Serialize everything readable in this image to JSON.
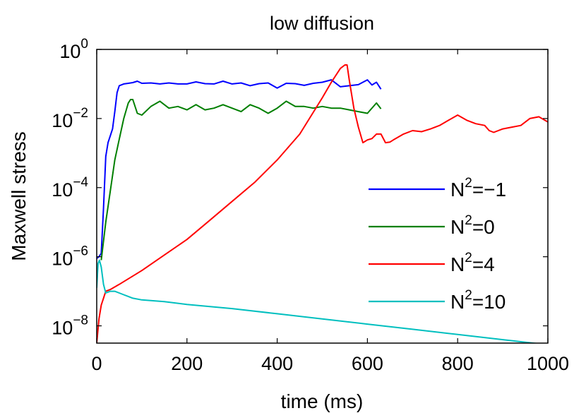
{
  "chart_data": {
    "type": "line",
    "title": "low diffusion",
    "xlabel": "time (ms)",
    "ylabel": "Maxwell stress",
    "yscale": "log",
    "xlim": [
      0,
      1000
    ],
    "ylim_exp": [
      -8.5,
      0
    ],
    "xticks": [
      0,
      200,
      400,
      600,
      800,
      1000
    ],
    "xtick_labels": [
      "0",
      "200",
      "400",
      "600",
      "800",
      "1000"
    ],
    "yticks_exp": [
      -8,
      -6,
      -4,
      -2,
      0
    ],
    "ytick_base": "10",
    "ytick_exponents": [
      "−8",
      "−6",
      "−4",
      "−2",
      "0"
    ],
    "legend_position": "lower-right",
    "series": [
      {
        "name": "N²=−1",
        "legend_prefix": "N",
        "legend_sup": "2",
        "legend_suffix": "=−1",
        "color": "#0000ff",
        "x": [
          0,
          5,
          10,
          15,
          20,
          25,
          30,
          35,
          40,
          45,
          50,
          60,
          70,
          80,
          90,
          100,
          120,
          140,
          160,
          180,
          200,
          220,
          240,
          260,
          280,
          300,
          320,
          340,
          360,
          380,
          400,
          420,
          440,
          460,
          480,
          500,
          520,
          540,
          560,
          580,
          600,
          610,
          620,
          630
        ],
        "y": [
          -6.05,
          -6.0,
          -5.9,
          -4.6,
          -3.1,
          -2.7,
          -2.5,
          -2.3,
          -1.8,
          -1.25,
          -1.05,
          -1.0,
          -0.98,
          -0.96,
          -0.92,
          -0.98,
          -0.97,
          -1.0,
          -0.97,
          -1.0,
          -1.0,
          -0.94,
          -0.99,
          -1.0,
          -0.92,
          -1.0,
          -0.97,
          -1.05,
          -0.99,
          -0.97,
          -1.12,
          -0.98,
          -0.99,
          -1.04,
          -0.98,
          -0.95,
          -0.88,
          -1.08,
          -1.05,
          -1.02,
          -0.88,
          -1.03,
          -0.95,
          -1.15
        ]
      },
      {
        "name": "N²=0",
        "legend_prefix": "N",
        "legend_sup": "2",
        "legend_suffix": "=0",
        "color": "#007f00",
        "x": [
          10,
          20,
          30,
          40,
          50,
          60,
          70,
          75,
          80,
          90,
          100,
          120,
          140,
          160,
          180,
          200,
          220,
          240,
          260,
          280,
          300,
          320,
          340,
          360,
          380,
          400,
          420,
          440,
          460,
          480,
          500,
          520,
          540,
          560,
          580,
          600,
          620,
          630
        ],
        "y": [
          -6.1,
          -5.0,
          -4.1,
          -3.2,
          -2.6,
          -2.0,
          -1.55,
          -1.45,
          -1.45,
          -1.85,
          -1.9,
          -1.65,
          -1.5,
          -1.7,
          -1.65,
          -1.75,
          -1.6,
          -1.75,
          -1.7,
          -1.6,
          -1.7,
          -1.8,
          -1.6,
          -1.7,
          -1.85,
          -1.7,
          -1.5,
          -1.65,
          -1.65,
          -1.7,
          -1.65,
          -1.7,
          -1.7,
          -1.75,
          -1.8,
          -1.85,
          -1.55,
          -1.72
        ]
      },
      {
        "name": "N²=4",
        "legend_prefix": "N",
        "legend_sup": "2",
        "legend_suffix": "=4",
        "color": "#ff0000",
        "x": [
          0,
          5,
          10,
          15,
          20,
          30,
          50,
          100,
          150,
          200,
          250,
          300,
          350,
          400,
          450,
          500,
          520,
          540,
          550,
          555,
          560,
          570,
          580,
          590,
          600,
          610,
          620,
          630,
          640,
          650,
          660,
          680,
          700,
          720,
          740,
          760,
          780,
          800,
          820,
          840,
          860,
          870,
          880,
          900,
          920,
          940,
          960,
          980,
          1000
        ],
        "y": [
          -8.5,
          -7.8,
          -7.4,
          -7.2,
          -7.0,
          -6.95,
          -6.8,
          -6.4,
          -5.95,
          -5.5,
          -4.95,
          -4.4,
          -3.85,
          -3.2,
          -2.45,
          -1.4,
          -0.95,
          -0.55,
          -0.45,
          -0.45,
          -0.9,
          -1.7,
          -2.25,
          -2.7,
          -2.62,
          -2.58,
          -2.45,
          -2.45,
          -2.7,
          -2.68,
          -2.6,
          -2.45,
          -2.35,
          -2.38,
          -2.3,
          -2.2,
          -2.05,
          -1.9,
          -2.05,
          -2.15,
          -2.2,
          -2.35,
          -2.4,
          -2.3,
          -2.25,
          -2.2,
          -2.0,
          -1.95,
          -2.1
        ]
      },
      {
        "name": "N²=10",
        "legend_prefix": "N",
        "legend_sup": "2",
        "legend_suffix": "=10",
        "color": "#00bfbf",
        "x": [
          0,
          3,
          6,
          10,
          15,
          20,
          30,
          40,
          50,
          60,
          70,
          80,
          100,
          150,
          200,
          300,
          400,
          500,
          600,
          700,
          800,
          900,
          1000
        ],
        "y": [
          -6.9,
          -6.2,
          -6.1,
          -6.3,
          -6.8,
          -7.05,
          -7.0,
          -7.0,
          -7.05,
          -7.1,
          -7.15,
          -7.2,
          -7.25,
          -7.3,
          -7.38,
          -7.5,
          -7.65,
          -7.8,
          -7.95,
          -8.1,
          -8.25,
          -8.4,
          -8.55
        ]
      }
    ]
  }
}
